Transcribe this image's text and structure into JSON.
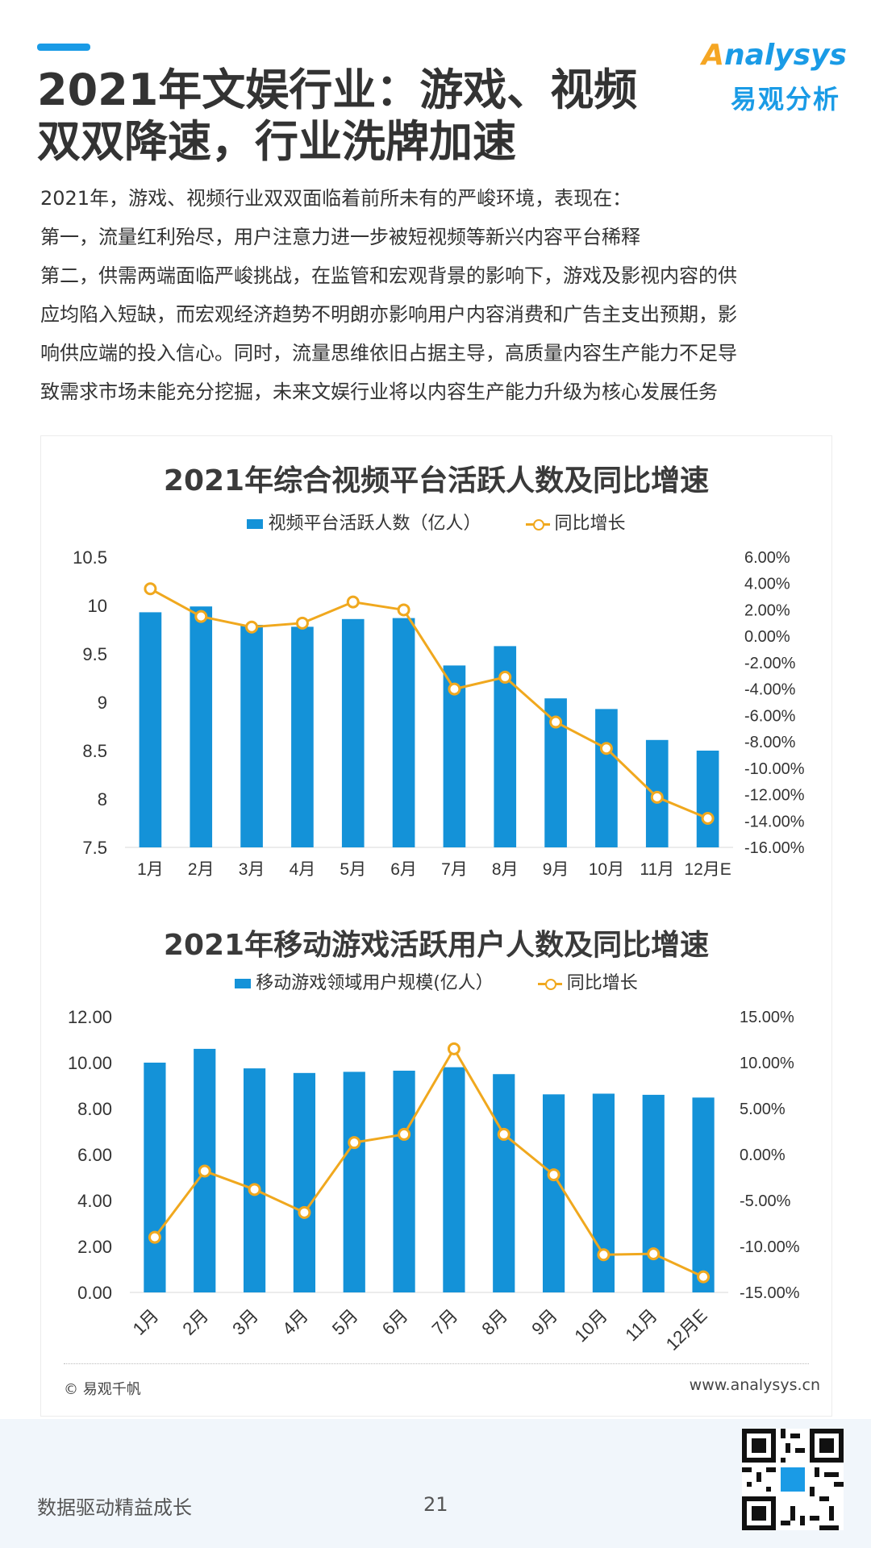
{
  "header": {
    "title_line1": "2021年文娱行业：游戏、视频",
    "title_line2": "双双降速，行业洗牌加速",
    "logo_en_first": "A",
    "logo_en_rest": "nalysys",
    "logo_cn": "易观分析"
  },
  "intro": [
    "2021年，游戏、视频行业双双面临着前所未有的严峻环境，表现在：",
    "第一，流量红利殆尽，用户注意力进一步被短视频等新兴内容平台稀释",
    "第二，供需两端面临严峻挑战，在监管和宏观背景的影响下，游戏及影视内容的供",
    "应均陷入短缺，而宏观经济趋势不明朗亦影响用户内容消费和广告主支出预期，影",
    "响供应端的投入信心。同时，流量思维依旧占据主导，高质量内容生产能力不足导",
    "致需求市场未能充分挖掘，未来文娱行业将以内容生产能力升级为核心发展任务"
  ],
  "chart_data": [
    {
      "type": "bar",
      "title": "2021年综合视频平台活跃人数及同比增速",
      "categories": [
        "1月",
        "2月",
        "3月",
        "4月",
        "5月",
        "6月",
        "7月",
        "8月",
        "9月",
        "10月",
        "11月",
        "12月E"
      ],
      "series": [
        {
          "name": "视频平台活跃人数（亿人）",
          "type": "bar",
          "axis": "left",
          "values": [
            9.93,
            9.99,
            9.8,
            9.78,
            9.86,
            9.87,
            9.38,
            9.58,
            9.04,
            8.93,
            8.61,
            8.5
          ]
        },
        {
          "name": "同比增长",
          "type": "line",
          "axis": "right",
          "values": [
            3.6,
            1.5,
            0.7,
            1.0,
            2.6,
            2.0,
            -4.0,
            -3.1,
            -6.5,
            -8.5,
            -12.2,
            -13.8
          ]
        }
      ],
      "y_left": {
        "min": 7.5,
        "max": 10.5,
        "ticks": [
          "7.5",
          "8",
          "8.5",
          "9",
          "9.5",
          "10",
          "10.5"
        ]
      },
      "y_right": {
        "min": -16,
        "max": 6,
        "ticks": [
          "-16.00%",
          "-14.00%",
          "-12.00%",
          "-10.00%",
          "-8.00%",
          "-6.00%",
          "-4.00%",
          "-2.00%",
          "0.00%",
          "2.00%",
          "4.00%",
          "6.00%"
        ]
      }
    },
    {
      "type": "bar",
      "title": "2021年移动游戏活跃用户人数及同比增速",
      "categories": [
        "1月",
        "2月",
        "3月",
        "4月",
        "5月",
        "6月",
        "7月",
        "8月",
        "9月",
        "10月",
        "11月",
        "12月E"
      ],
      "series": [
        {
          "name": "移动游戏领域用户规模(亿人）",
          "type": "bar",
          "axis": "left",
          "values": [
            10.0,
            10.6,
            9.75,
            9.55,
            9.6,
            9.65,
            9.8,
            9.5,
            8.62,
            8.65,
            8.6,
            8.48
          ]
        },
        {
          "name": "同比增长",
          "type": "line",
          "axis": "right",
          "values": [
            -9.0,
            -1.8,
            -3.8,
            -6.3,
            1.3,
            2.2,
            11.5,
            2.2,
            -2.2,
            -10.9,
            -10.8,
            -13.3
          ]
        }
      ],
      "y_left": {
        "min": 0,
        "max": 12,
        "ticks": [
          "0.00",
          "2.00",
          "4.00",
          "6.00",
          "8.00",
          "10.00",
          "12.00"
        ]
      },
      "y_right": {
        "min": -15,
        "max": 15,
        "ticks": [
          "-15.00%",
          "-10.00%",
          "-5.00%",
          "0.00%",
          "5.00%",
          "10.00%",
          "15.00%"
        ]
      }
    }
  ],
  "colors": {
    "bar": "#1492d8",
    "line": "#f0a81e",
    "accent": "#1a9be6"
  },
  "panel_footer": {
    "copyright": "© 易观千帆",
    "website": "www.analysys.cn"
  },
  "footer": {
    "slogan": "数据驱动精益成长",
    "page": "21"
  }
}
